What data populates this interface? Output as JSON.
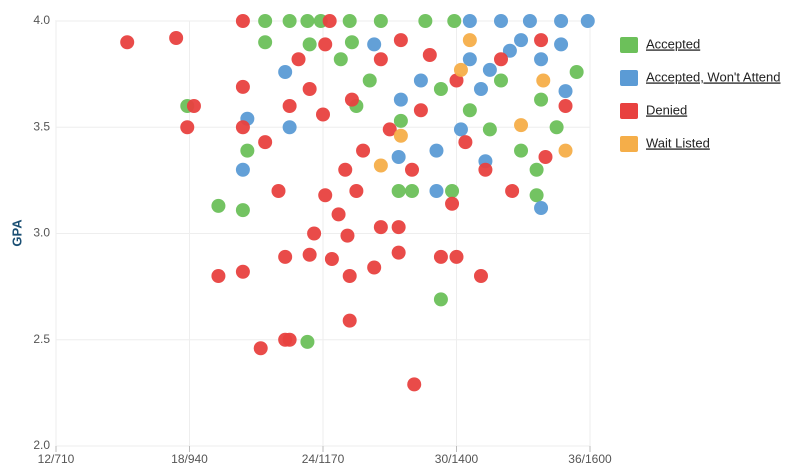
{
  "chart_data": {
    "type": "scatter",
    "y_label": "GPA",
    "xlim": [
      12,
      36
    ],
    "xticks": [
      {
        "value": 12,
        "label": "12/710"
      },
      {
        "value": 18,
        "label": "18/940"
      },
      {
        "value": 24,
        "label": "24/1170"
      },
      {
        "value": 30,
        "label": "30/1400"
      },
      {
        "value": 36,
        "label": "36/1600"
      }
    ],
    "ylim": [
      2,
      4
    ],
    "yticks": [
      {
        "value": 2,
        "label": "2.0"
      },
      2.5,
      {
        "value": 3,
        "label": "3.0"
      },
      3.5,
      {
        "value": 4,
        "label": "4.0"
      }
    ],
    "grid": true,
    "legend": "right",
    "series": [
      {
        "name": "Accepted",
        "color": "#6cc05a",
        "x": [
          17.9,
          19.3,
          20.4,
          20.6,
          21.4,
          21.4,
          23.3,
          22.5,
          23.3,
          23.4,
          25.2,
          25.3,
          26.6,
          27.4,
          28.0,
          29.3,
          29.8,
          31.5,
          32.9,
          33.6,
          33.6,
          34.5,
          35.4,
          25.5,
          26.1,
          27.5,
          29.3,
          30.6,
          32.0,
          33.8,
          28.6,
          29.9,
          23.9,
          24.8
        ],
        "values": [
          3.6,
          3.13,
          3.11,
          3.39,
          4.0,
          3.9,
          2.49,
          4.0,
          4.0,
          3.89,
          4.0,
          3.9,
          4.0,
          3.2,
          3.2,
          2.69,
          3.2,
          3.49,
          3.39,
          3.3,
          3.18,
          3.5,
          3.76,
          3.6,
          3.72,
          3.53,
          3.68,
          3.58,
          3.72,
          3.63,
          4.0,
          4.0,
          4.0,
          3.82
        ]
      },
      {
        "name": "Accepted, Won't Attend",
        "color": "#5b9bd5",
        "x": [
          22.3,
          22.5,
          20.6,
          20.4,
          27.4,
          29.1,
          29.1,
          31.3,
          33.8,
          34.9,
          35.9,
          34.7,
          33.3,
          32.0,
          30.6,
          30.6,
          31.5,
          32.4,
          33.8,
          34.7,
          31.1,
          28.4,
          27.5,
          26.3,
          30.2,
          32.9
        ],
        "values": [
          3.76,
          3.5,
          3.54,
          3.3,
          3.36,
          3.39,
          3.2,
          3.34,
          3.12,
          3.67,
          4.0,
          4.0,
          4.0,
          4.0,
          4.0,
          3.82,
          3.77,
          3.86,
          3.82,
          3.89,
          3.68,
          3.72,
          3.63,
          3.89,
          3.49,
          3.91
        ]
      },
      {
        "name": "Denied",
        "color": "#e8413f",
        "x": [
          15.2,
          17.4,
          18.2,
          17.9,
          19.3,
          20.4,
          20.4,
          20.4,
          20.4,
          21.4,
          22.0,
          21.2,
          22.3,
          22.5,
          22.3,
          22.5,
          23.4,
          23.6,
          24.0,
          24.1,
          24.4,
          24.7,
          25.2,
          25.2,
          25.1,
          25.5,
          25.0,
          25.8,
          26.3,
          26.6,
          27.4,
          27.4,
          28.1,
          28.0,
          29.3,
          30.0,
          31.1,
          29.8,
          30.4,
          31.3,
          32.5,
          34.0,
          34.9,
          24.3,
          24.1,
          25.3,
          26.6,
          27.5,
          28.8,
          30.0,
          32.0,
          33.8,
          27.0,
          28.4,
          22.9,
          23.4
        ],
        "values": [
          3.9,
          3.92,
          3.6,
          3.5,
          2.8,
          2.82,
          4.0,
          3.69,
          3.5,
          3.43,
          3.2,
          2.46,
          2.5,
          2.5,
          2.89,
          3.6,
          2.9,
          3.0,
          3.56,
          3.18,
          2.88,
          3.09,
          2.8,
          2.59,
          2.99,
          3.2,
          3.3,
          3.39,
          2.84,
          3.03,
          3.03,
          2.91,
          2.29,
          3.3,
          2.89,
          2.89,
          2.8,
          3.14,
          3.43,
          3.3,
          3.2,
          3.36,
          3.6,
          4.0,
          3.89,
          3.63,
          3.82,
          3.91,
          3.84,
          3.72,
          3.82,
          3.91,
          3.49,
          3.58,
          3.82,
          3.68
        ]
      },
      {
        "name": "Wait Listed",
        "color": "#f5ae49",
        "x": [
          34.9,
          32.9,
          26.6,
          30.6,
          30.2,
          33.9,
          27.5
        ],
        "values": [
          3.39,
          3.51,
          3.32,
          3.91,
          3.77,
          3.72,
          3.46
        ]
      }
    ]
  }
}
